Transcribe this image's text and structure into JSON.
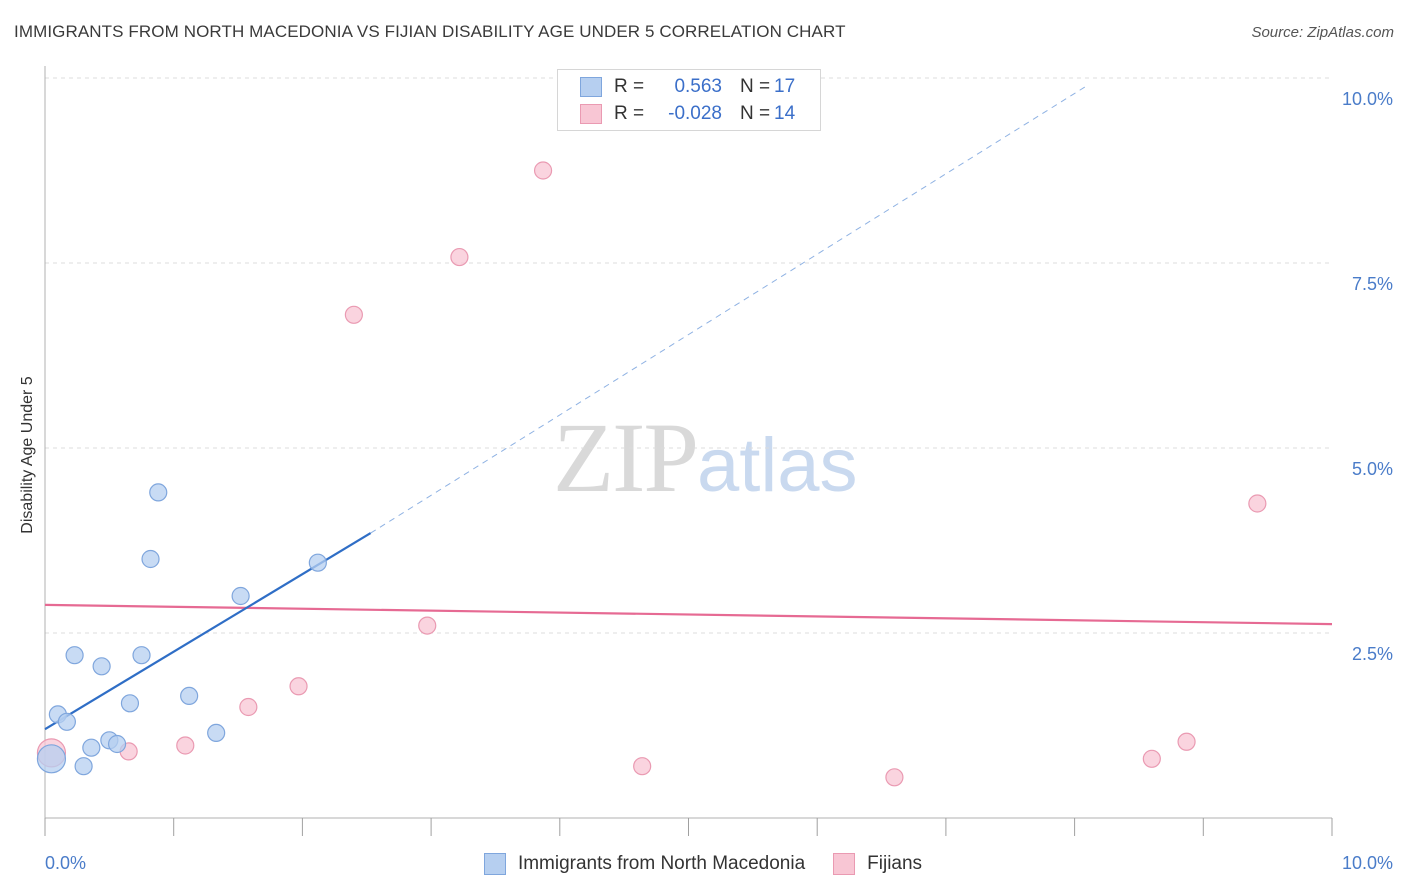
{
  "header": {
    "title": "IMMIGRANTS FROM NORTH MACEDONIA VS FIJIAN DISABILITY AGE UNDER 5 CORRELATION CHART",
    "source": "Source: ZipAtlas.com"
  },
  "watermark": {
    "zip": "ZIP",
    "atlas": "atlas"
  },
  "legend": {
    "rows": [
      {
        "r_label": "R =",
        "r_value": "0.563",
        "n_label": "N =",
        "n_value": "17"
      },
      {
        "r_label": "R =",
        "r_value": "-0.028",
        "n_label": "N =",
        "n_value": "14"
      }
    ]
  },
  "bottom_legend": {
    "series_a": "Immigrants from North Macedonia",
    "series_b": "Fijians"
  },
  "colors": {
    "blue_fill": "#b6cff0",
    "blue_stroke": "#7fa6dd",
    "blue_line": "#2f6ec6",
    "pink_fill": "#f8c6d4",
    "pink_stroke": "#ea9ab2",
    "pink_line": "#e66a93",
    "grid": "#dcdcdc",
    "axis": "#9a9a9a"
  },
  "chart_data": {
    "type": "scatter",
    "title": "IMMIGRANTS FROM NORTH MACEDONIA VS FIJIAN DISABILITY AGE UNDER 5 CORRELATION CHART",
    "xlabel": "",
    "ylabel": "Disability Age Under 5",
    "xlim": [
      0,
      10
    ],
    "ylim": [
      0,
      10
    ],
    "x_tick_labels": [
      {
        "value": 0,
        "label": "0.0%"
      },
      {
        "value": 10,
        "label": "10.0%"
      }
    ],
    "y_tick_labels": [
      {
        "value": 2.5,
        "label": "2.5%"
      },
      {
        "value": 5.0,
        "label": "5.0%"
      },
      {
        "value": 7.5,
        "label": "7.5%"
      },
      {
        "value": 10.0,
        "label": "10.0%"
      }
    ],
    "series": [
      {
        "name": "Immigrants from North Macedonia",
        "color": "#b6cff0",
        "points": [
          {
            "x": 0.05,
            "y": 0.8,
            "size": "large"
          },
          {
            "x": 0.1,
            "y": 1.4
          },
          {
            "x": 0.17,
            "y": 1.3
          },
          {
            "x": 0.23,
            "y": 2.2
          },
          {
            "x": 0.3,
            "y": 0.7
          },
          {
            "x": 0.36,
            "y": 0.95
          },
          {
            "x": 0.44,
            "y": 2.05
          },
          {
            "x": 0.5,
            "y": 1.05
          },
          {
            "x": 0.56,
            "y": 1.0
          },
          {
            "x": 0.66,
            "y": 1.55
          },
          {
            "x": 0.75,
            "y": 2.2
          },
          {
            "x": 0.82,
            "y": 3.5
          },
          {
            "x": 0.88,
            "y": 4.4
          },
          {
            "x": 1.12,
            "y": 1.65
          },
          {
            "x": 1.33,
            "y": 1.15
          },
          {
            "x": 1.52,
            "y": 3.0
          },
          {
            "x": 2.12,
            "y": 3.45
          }
        ],
        "trend": {
          "x0": 0.0,
          "y0": 1.2,
          "x_solid_end": 2.53,
          "y_solid_end": 3.85,
          "x_dash_end": 8.1,
          "y_dash_end": 9.9
        }
      },
      {
        "name": "Fijians",
        "color": "#f8c6d4",
        "points": [
          {
            "x": 0.05,
            "y": 0.88,
            "size": "large"
          },
          {
            "x": 0.65,
            "y": 0.9
          },
          {
            "x": 1.09,
            "y": 0.98
          },
          {
            "x": 1.58,
            "y": 1.5
          },
          {
            "x": 1.97,
            "y": 1.78
          },
          {
            "x": 2.4,
            "y": 6.8
          },
          {
            "x": 2.97,
            "y": 2.6
          },
          {
            "x": 3.22,
            "y": 7.58
          },
          {
            "x": 3.87,
            "y": 8.75
          },
          {
            "x": 4.64,
            "y": 0.7
          },
          {
            "x": 6.6,
            "y": 0.55
          },
          {
            "x": 8.6,
            "y": 0.8
          },
          {
            "x": 8.87,
            "y": 1.03
          },
          {
            "x": 9.42,
            "y": 4.25
          }
        ],
        "trend": {
          "x0": 0.0,
          "y0": 2.88,
          "x1": 10.0,
          "y1": 2.62
        }
      }
    ]
  }
}
